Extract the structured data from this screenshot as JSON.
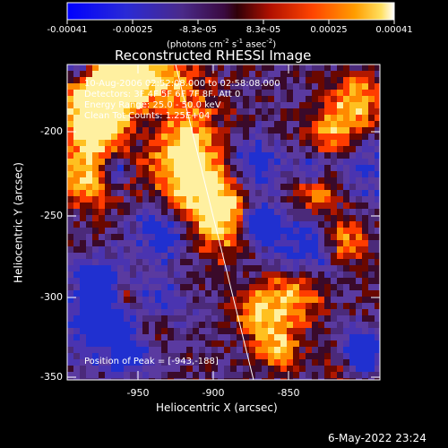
{
  "colorbar": {
    "ticks": [
      "-0.00041",
      "-0.00025",
      "-8.3e-05",
      "8.3e-05",
      "0.00025",
      "0.00041"
    ],
    "unit_label": "(photons cm",
    "unit_sup1": "-2",
    "unit_mid1": " s",
    "unit_sup2": "-1",
    "unit_mid2": " asec",
    "unit_sup3": "-2",
    "unit_end": ")"
  },
  "title": "Reconstructed RHESSI Image",
  "overlay": {
    "time_range": "10-Aug-2006 02:52:08.000 to 02:58:08.000",
    "detectors": "Detectors: 3F 4F 5F 6F 7F 8F, Att 0",
    "energy": "Energy Range: 25.0 - 50.0 keV",
    "clean": "Clean    Tot Counts: 1.25E+04",
    "peak": "Position of Peak = [-943,-188]"
  },
  "axes": {
    "xlabel": "Heliocentric X (arcsec)",
    "ylabel": "Heliocentric Y (arcsec)",
    "xticks": [
      "-950",
      "-900",
      "-850"
    ],
    "yticks": [
      "-200",
      "-250",
      "-300",
      "-350"
    ]
  },
  "footer": {
    "timestamp": "6-May-2022 23:24"
  }
}
